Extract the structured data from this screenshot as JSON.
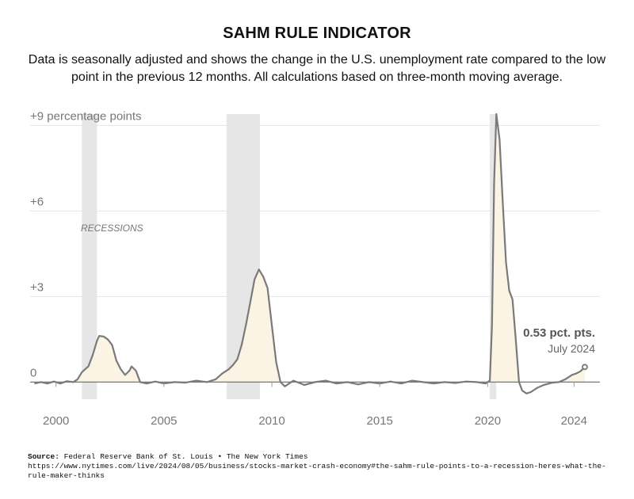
{
  "title": "SAHM RULE INDICATOR",
  "subtitle": "Data is seasonally adjusted and shows the change in the U.S. unemployment rate compared to the low point in the previous 12 months. All calculations based on three-month moving average.",
  "source": {
    "label": "Source:",
    "text": "Federal Reserve Bank of St. Louis • The New York Times",
    "url": "https://www.nytimes.com/live/2024/08/05/business/stocks-market-crash-economy#the-sahm-rule-points-to-a-recession-heres-what-the-rule-maker-thinks"
  },
  "colors": {
    "line": "#7a7a7a",
    "fill": "#fbf3e4",
    "recession": "#e6e6e6",
    "grid": "#e4e4e4",
    "text": "#777777"
  },
  "chart_data": {
    "type": "area",
    "title": "SAHM RULE INDICATOR",
    "xlabel": "",
    "ylabel": "percentage points",
    "xlim": [
      1998.8,
      2025.2
    ],
    "ylim": [
      -0.6,
      9.4
    ],
    "grid": true,
    "x_ticks": [
      2000,
      2005,
      2010,
      2015,
      2020,
      2024
    ],
    "x_tick_labels": [
      "2000",
      "2005",
      "2010",
      "2015",
      "2020",
      "2024"
    ],
    "y_ticks": [
      0,
      3,
      6,
      9
    ],
    "y_tick_labels": [
      "0",
      "+3",
      "+6",
      "+9 percentage points"
    ],
    "recessions": [
      {
        "start": 2001.2,
        "end": 2001.9
      },
      {
        "start": 2007.9,
        "end": 2009.45
      },
      {
        "start": 2020.1,
        "end": 2020.4
      }
    ],
    "recession_label": "RECESSIONS",
    "annotation": {
      "value_label": "0.53 pct. pts.",
      "date_label": "July 2024",
      "x": 2024.5,
      "y": 0.53
    },
    "series": [
      {
        "name": "Sahm rule indicator",
        "points": [
          [
            1999.0,
            -0.05
          ],
          [
            1999.3,
            0.0
          ],
          [
            1999.6,
            -0.05
          ],
          [
            1999.9,
            0.02
          ],
          [
            2000.2,
            -0.05
          ],
          [
            2000.5,
            0.03
          ],
          [
            2000.8,
            0.0
          ],
          [
            2001.0,
            0.1
          ],
          [
            2001.2,
            0.35
          ],
          [
            2001.5,
            0.55
          ],
          [
            2001.7,
            0.95
          ],
          [
            2001.9,
            1.45
          ],
          [
            2002.0,
            1.62
          ],
          [
            2002.2,
            1.6
          ],
          [
            2002.4,
            1.5
          ],
          [
            2002.6,
            1.3
          ],
          [
            2002.8,
            0.75
          ],
          [
            2003.0,
            0.45
          ],
          [
            2003.2,
            0.25
          ],
          [
            2003.4,
            0.4
          ],
          [
            2003.5,
            0.55
          ],
          [
            2003.7,
            0.4
          ],
          [
            2003.9,
            0.0
          ],
          [
            2004.2,
            -0.05
          ],
          [
            2004.6,
            0.02
          ],
          [
            2005.0,
            -0.05
          ],
          [
            2005.5,
            0.0
          ],
          [
            2006.0,
            -0.02
          ],
          [
            2006.5,
            0.05
          ],
          [
            2007.0,
            0.0
          ],
          [
            2007.4,
            0.1
          ],
          [
            2007.7,
            0.3
          ],
          [
            2008.0,
            0.45
          ],
          [
            2008.2,
            0.6
          ],
          [
            2008.4,
            0.8
          ],
          [
            2008.6,
            1.3
          ],
          [
            2008.8,
            2.0
          ],
          [
            2009.0,
            2.8
          ],
          [
            2009.2,
            3.6
          ],
          [
            2009.4,
            3.95
          ],
          [
            2009.6,
            3.7
          ],
          [
            2009.8,
            3.3
          ],
          [
            2010.0,
            2.0
          ],
          [
            2010.2,
            0.7
          ],
          [
            2010.4,
            0.0
          ],
          [
            2010.6,
            -0.15
          ],
          [
            2011.0,
            0.05
          ],
          [
            2011.5,
            -0.1
          ],
          [
            2012.0,
            0.0
          ],
          [
            2012.5,
            0.05
          ],
          [
            2013.0,
            -0.05
          ],
          [
            2013.5,
            0.0
          ],
          [
            2014.0,
            -0.08
          ],
          [
            2014.5,
            0.0
          ],
          [
            2015.0,
            -0.05
          ],
          [
            2015.5,
            0.02
          ],
          [
            2016.0,
            -0.05
          ],
          [
            2016.5,
            0.05
          ],
          [
            2017.0,
            0.0
          ],
          [
            2017.5,
            -0.05
          ],
          [
            2018.0,
            0.0
          ],
          [
            2018.5,
            -0.03
          ],
          [
            2019.0,
            0.02
          ],
          [
            2019.5,
            0.0
          ],
          [
            2019.9,
            -0.05
          ],
          [
            2020.1,
            0.05
          ],
          [
            2020.2,
            2.0
          ],
          [
            2020.3,
            7.0
          ],
          [
            2020.4,
            9.4
          ],
          [
            2020.55,
            8.5
          ],
          [
            2020.7,
            6.3
          ],
          [
            2020.85,
            4.2
          ],
          [
            2021.0,
            3.2
          ],
          [
            2021.15,
            2.9
          ],
          [
            2021.3,
            1.5
          ],
          [
            2021.45,
            0.0
          ],
          [
            2021.6,
            -0.3
          ],
          [
            2021.8,
            -0.4
          ],
          [
            2022.0,
            -0.35
          ],
          [
            2022.3,
            -0.2
          ],
          [
            2022.6,
            -0.1
          ],
          [
            2023.0,
            -0.02
          ],
          [
            2023.3,
            0.0
          ],
          [
            2023.6,
            0.1
          ],
          [
            2023.9,
            0.25
          ],
          [
            2024.1,
            0.3
          ],
          [
            2024.3,
            0.38
          ],
          [
            2024.5,
            0.53
          ]
        ]
      }
    ]
  }
}
